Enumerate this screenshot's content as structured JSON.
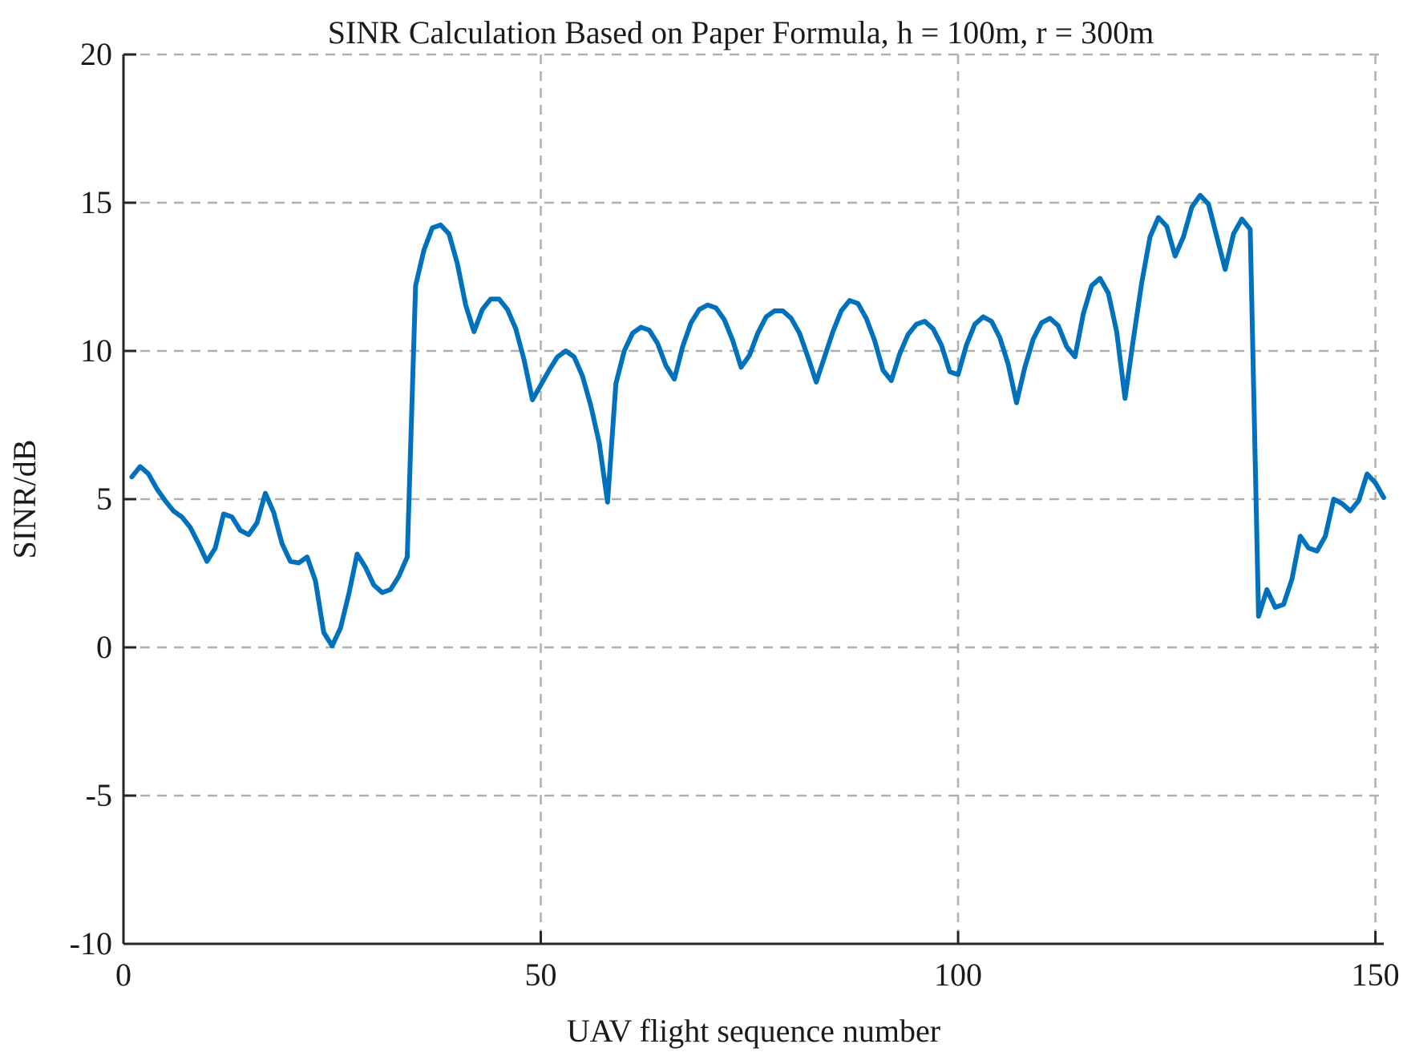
{
  "chart_data": {
    "type": "line",
    "title": "SINR Calculation Based on Paper Formula, h = 100m, r = 300m",
    "xlabel": "UAV flight sequence number",
    "ylabel": "SINR/dB",
    "xlim": [
      0,
      151
    ],
    "ylim": [
      -10,
      20
    ],
    "xticks": [
      0,
      50,
      100,
      150
    ],
    "yticks": [
      -10,
      -5,
      0,
      5,
      10,
      15,
      20
    ],
    "xtick_labels": [
      "0",
      "50",
      "100",
      "150"
    ],
    "ytick_labels": [
      "-10",
      "-5",
      "0",
      "5",
      "10",
      "15",
      "20"
    ],
    "grid": true,
    "color": "#0072BD",
    "x": [
      1,
      2,
      3,
      4,
      5,
      6,
      7,
      8,
      9,
      10,
      11,
      12,
      13,
      14,
      15,
      16,
      17,
      18,
      19,
      20,
      21,
      22,
      23,
      24,
      25,
      26,
      27,
      28,
      29,
      30,
      31,
      32,
      33,
      34,
      35,
      36,
      37,
      38,
      39,
      40,
      41,
      42,
      43,
      44,
      45,
      46,
      47,
      48,
      49,
      50,
      51,
      52,
      53,
      54,
      55,
      56,
      57,
      58,
      59,
      60,
      61,
      62,
      63,
      64,
      65,
      66,
      67,
      68,
      69,
      70,
      71,
      72,
      73,
      74,
      75,
      76,
      77,
      78,
      79,
      80,
      81,
      82,
      83,
      84,
      85,
      86,
      87,
      88,
      89,
      90,
      91,
      92,
      93,
      94,
      95,
      96,
      97,
      98,
      99,
      100,
      101,
      102,
      103,
      104,
      105,
      106,
      107,
      108,
      109,
      110,
      111,
      112,
      113,
      114,
      115,
      116,
      117,
      118,
      119,
      120,
      121,
      122,
      123,
      124,
      125,
      126,
      127,
      128,
      129,
      130,
      131,
      132,
      133,
      134,
      135,
      136,
      137,
      138,
      139,
      140,
      141,
      142,
      143,
      144,
      145,
      146,
      147,
      148,
      149,
      150,
      151
    ],
    "series": [
      {
        "values": [
          5.75,
          6.1,
          5.85,
          5.35,
          4.95,
          4.6,
          4.4,
          4.05,
          3.5,
          2.9,
          3.35,
          4.5,
          4.4,
          3.95,
          3.8,
          4.2,
          5.2,
          4.55,
          3.5,
          2.9,
          2.85,
          3.05,
          2.25,
          0.5,
          0.05,
          0.65,
          1.8,
          3.15,
          2.7,
          2.1,
          1.85,
          1.95,
          2.4,
          3.05,
          12.2,
          13.4,
          14.15,
          14.25,
          13.95,
          12.95,
          11.55,
          10.65,
          11.4,
          11.75,
          11.75,
          11.4,
          10.75,
          9.7,
          8.35,
          8.85,
          9.35,
          9.8,
          10.0,
          9.8,
          9.15,
          8.15,
          6.9,
          4.9,
          8.9,
          10.0,
          10.6,
          10.8,
          10.7,
          10.25,
          9.5,
          9.05,
          10.15,
          10.95,
          11.4,
          11.55,
          11.45,
          11.05,
          10.35,
          9.45,
          9.85,
          10.6,
          11.15,
          11.35,
          11.35,
          11.1,
          10.6,
          9.8,
          8.95,
          9.8,
          10.65,
          11.35,
          11.7,
          11.6,
          11.1,
          10.35,
          9.35,
          9.0,
          9.9,
          10.55,
          10.9,
          11.0,
          10.75,
          10.2,
          9.3,
          9.2,
          10.2,
          10.9,
          11.15,
          11.0,
          10.45,
          9.55,
          8.25,
          9.45,
          10.4,
          10.95,
          11.1,
          10.85,
          10.15,
          9.8,
          11.25,
          12.2,
          12.45,
          11.95,
          10.65,
          8.4,
          10.4,
          12.3,
          13.85,
          14.5,
          14.2,
          13.2,
          13.85,
          14.85,
          15.25,
          14.95,
          13.85,
          12.75,
          13.95,
          14.45,
          14.1,
          1.05,
          1.95,
          1.35,
          1.45,
          2.3,
          3.75,
          3.35,
          3.25,
          3.75,
          5.0,
          4.85,
          4.6,
          4.95,
          5.85,
          5.55,
          5.05
        ]
      }
    ]
  }
}
